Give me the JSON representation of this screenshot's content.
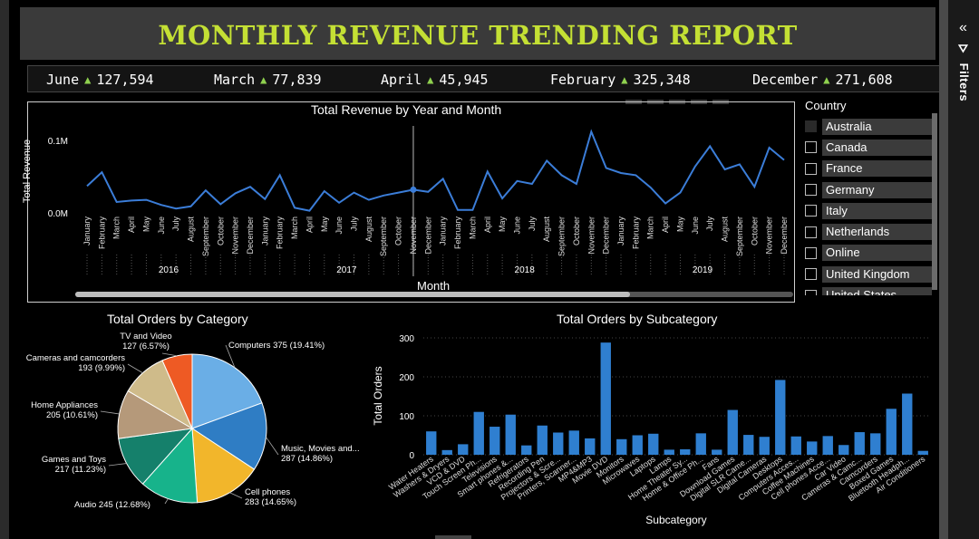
{
  "title": "MONTHLY REVENUE TRENDING REPORT",
  "kpis": [
    {
      "month": "June",
      "value": "127,594"
    },
    {
      "month": "March",
      "value": "77,839"
    },
    {
      "month": "April",
      "value": "45,945"
    },
    {
      "month": "February",
      "value": "325,348"
    },
    {
      "month": "December",
      "value": "271,608"
    }
  ],
  "slicer": {
    "title": "Country",
    "items": [
      "Australia",
      "Canada",
      "France",
      "Germany",
      "Italy",
      "Netherlands",
      "Online",
      "United Kingdom",
      "United States"
    ]
  },
  "filters_pane": {
    "label": "Filters"
  },
  "colors": {
    "title": "#c4e034",
    "line": "#3b7dd8",
    "bar": "#2f7fd0",
    "kpi_arrow": "#8fd14f"
  },
  "chart_data": [
    {
      "type": "line",
      "title": "Total Revenue by Year and Month",
      "xlabel": "Month",
      "ylabel": "Total Revenue",
      "ytick_labels": [
        "0.0M",
        "0.1M"
      ],
      "yticks": [
        0,
        100000
      ],
      "ylim": [
        0,
        120000
      ],
      "months": [
        "January",
        "February",
        "March",
        "April",
        "May",
        "June",
        "July",
        "August",
        "September",
        "October",
        "November",
        "December"
      ],
      "years": [
        "2016",
        "2017",
        "2018",
        "2019"
      ],
      "values": [
        37000,
        56000,
        15000,
        17000,
        18000,
        11000,
        6000,
        9000,
        31000,
        12000,
        27000,
        36000,
        19000,
        52000,
        7000,
        3000,
        30000,
        14000,
        28000,
        18000,
        24000,
        28000,
        32000,
        29000,
        47000,
        4000,
        4000,
        57000,
        20000,
        44000,
        40000,
        72000,
        52000,
        40000,
        112000,
        62000,
        55000,
        52000,
        35000,
        13000,
        28000,
        64000,
        92000,
        60000,
        67000,
        36000,
        90000,
        73000
      ],
      "highlight_index": 22
    },
    {
      "type": "pie",
      "title": "Total Orders by Category",
      "slices": [
        {
          "name": "Computers",
          "value": 375,
          "pct": "19.41%",
          "color": "#6aaee6"
        },
        {
          "name": "Music, Movies and...",
          "value": 287,
          "pct": "14.86%",
          "color": "#2f7dc4"
        },
        {
          "name": "Cell phones",
          "value": 283,
          "pct": "14.65%",
          "color": "#f2b62b"
        },
        {
          "name": "Audio",
          "value": 245,
          "pct": "12.68%",
          "color": "#17b38b"
        },
        {
          "name": "Games and Toys",
          "value": 217,
          "pct": "11.23%",
          "color": "#15806b"
        },
        {
          "name": "Home Appliances",
          "value": 205,
          "pct": "10.61%",
          "color": "#b5997a"
        },
        {
          "name": "Cameras and camcorders",
          "value": 193,
          "pct": "9.99%",
          "color": "#cfbb8a"
        },
        {
          "name": "TV and Video",
          "value": 127,
          "pct": "6.57%",
          "color": "#ee5a24"
        }
      ],
      "labels": [
        {
          "line1": "Computers 375 (19.41%)",
          "line2": ""
        },
        {
          "line1": "Music, Movies and...",
          "line2": "287 (14.86%)"
        },
        {
          "line1": "Cell phones",
          "line2": "283 (14.65%)"
        },
        {
          "line1": "Audio 245 (12.68%)",
          "line2": ""
        },
        {
          "line1": "Games and Toys",
          "line2": "217 (11.23%)"
        },
        {
          "line1": "Home Appliances",
          "line2": "205 (10.61%)"
        },
        {
          "line1": "Cameras and camcorders",
          "line2": "193 (9.99%)"
        },
        {
          "line1": "TV and Video",
          "line2": "127 (6.57%)"
        }
      ]
    },
    {
      "type": "bar",
      "title": "Total Orders by Subcategory",
      "xlabel": "Subcategory",
      "ylabel": "Total Orders",
      "ylim": [
        0,
        300
      ],
      "yticks": [
        0,
        100,
        200,
        300
      ],
      "categories": [
        "Water Heaters",
        "Washers & Dryers",
        "VCD & DVD",
        "Touch Screen Ph...",
        "Televisions",
        "Smart phones &...",
        "Refrigerators",
        "Recording Pen",
        "Projectors & Scre...",
        "Printers, Scanner...",
        "MP4&MP3",
        "Movie DVD",
        "Monitors",
        "Microwaves",
        "Laptops",
        "Lamps",
        "Home Theater Sy...",
        "Home & Office Ph...",
        "Fans",
        "Download Games",
        "Digital SLR Came...",
        "Digital Cameras",
        "Desktops",
        "Computers Acces...",
        "Coffee Machines",
        "Cell phones Acce...",
        "Car Video",
        "Cameras & Camc...",
        "Camcorders",
        "Boxed Games",
        "Bluetooth Headph...",
        "Air Conditioners"
      ],
      "values": [
        60,
        12,
        27,
        110,
        72,
        103,
        24,
        75,
        57,
        62,
        42,
        288,
        40,
        50,
        54,
        13,
        14,
        55,
        13,
        115,
        51,
        46,
        192,
        47,
        34,
        48,
        25,
        58,
        55,
        118,
        157,
        10
      ]
    }
  ]
}
